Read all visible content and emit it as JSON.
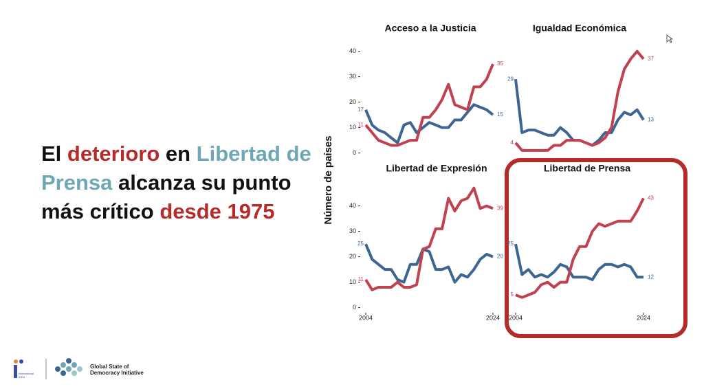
{
  "headline": [
    {
      "text": "El ",
      "color": "#111111"
    },
    {
      "text": "deterioro",
      "color": "#b32c2a"
    },
    {
      "text": " en ",
      "color": "#111111"
    },
    {
      "text": "Libertad de Prensa",
      "color": "#6fa8b5"
    },
    {
      "text": " alcanza su punto más crítico ",
      "color": "#111111"
    },
    {
      "text": "desde 1975",
      "color": "#b32c2a"
    }
  ],
  "y_axis_label": "Número de países",
  "footer": {
    "logo1": "International IDEA",
    "logo2": "Global State of Democracy Initiative"
  },
  "chart_data": [
    {
      "type": "line",
      "title": "Acceso a la Justicia",
      "x": [
        2004,
        2005,
        2006,
        2007,
        2008,
        2009,
        2010,
        2011,
        2012,
        2013,
        2014,
        2015,
        2016,
        2017,
        2018,
        2019,
        2020,
        2021,
        2022,
        2023,
        2024
      ],
      "ylim": [
        -2,
        48
      ],
      "yticks": [
        0,
        10,
        20,
        30,
        40
      ],
      "series": [
        {
          "color": "#3d6591",
          "values": [
            17,
            11,
            9,
            8,
            6,
            4,
            11,
            12,
            8,
            10,
            12,
            11,
            10,
            10,
            13,
            13,
            16,
            19,
            18,
            17,
            15
          ]
        },
        {
          "color": "#c0414f",
          "values": [
            11,
            8,
            5,
            4,
            3,
            3,
            4,
            5,
            5,
            14,
            14,
            17,
            21,
            27,
            19,
            18,
            17,
            26,
            26,
            29,
            35
          ]
        }
      ]
    },
    {
      "type": "line",
      "title": "Igualdad Económica",
      "x": [
        2004,
        2005,
        2006,
        2007,
        2008,
        2009,
        2010,
        2011,
        2012,
        2013,
        2014,
        2015,
        2016,
        2017,
        2018,
        2019,
        2020,
        2021,
        2022,
        2023,
        2024
      ],
      "ylim": [
        -2,
        48
      ],
      "series": [
        {
          "color": "#3d6591",
          "values": [
            29,
            8,
            9,
            9,
            8,
            7,
            7,
            10,
            8,
            5,
            5,
            4,
            3,
            5,
            8,
            8,
            13,
            16,
            15,
            17,
            13
          ]
        },
        {
          "color": "#c0414f",
          "values": [
            4,
            1,
            1,
            1,
            1,
            1,
            3,
            3,
            5,
            5,
            5,
            4,
            3,
            4,
            6,
            10,
            24,
            33,
            37,
            40,
            37
          ]
        }
      ]
    },
    {
      "type": "line",
      "title": "Libertad de Expresión",
      "x": [
        2004,
        2005,
        2006,
        2007,
        2008,
        2009,
        2010,
        2011,
        2012,
        2013,
        2014,
        2015,
        2016,
        2017,
        2018,
        2019,
        2020,
        2021,
        2022,
        2023,
        2024
      ],
      "ylim": [
        -2,
        48
      ],
      "yticks": [
        0,
        10,
        20,
        30,
        40
      ],
      "xticks": [
        2004,
        2024
      ],
      "series": [
        {
          "color": "#3d6591",
          "values": [
            25,
            19,
            17,
            15,
            15,
            11,
            10,
            17,
            17,
            23,
            22,
            15,
            15,
            16,
            10,
            13,
            12,
            15,
            19,
            21,
            20
          ]
        },
        {
          "color": "#c0414f",
          "values": [
            11,
            7,
            8,
            8,
            8,
            10,
            8,
            8,
            9,
            23,
            24,
            31,
            31,
            43,
            38,
            42,
            43,
            47,
            39,
            40,
            39
          ]
        }
      ]
    },
    {
      "type": "line",
      "title": "Libertad de Prensa",
      "x": [
        2004,
        2005,
        2006,
        2007,
        2008,
        2009,
        2010,
        2011,
        2012,
        2013,
        2014,
        2015,
        2016,
        2017,
        2018,
        2019,
        2020,
        2021,
        2022,
        2023,
        2024
      ],
      "ylim": [
        -2,
        48
      ],
      "xticks": [
        2004,
        2024
      ],
      "series": [
        {
          "color": "#3d6591",
          "values": [
            25,
            13,
            15,
            12,
            13,
            12,
            14,
            17,
            16,
            12,
            12,
            12,
            11,
            15,
            17,
            17,
            16,
            17,
            16,
            12,
            12
          ]
        },
        {
          "color": "#c0414f",
          "values": [
            5,
            4,
            5,
            6,
            9,
            10,
            8,
            10,
            10,
            19,
            24,
            24,
            30,
            33,
            32,
            33,
            34,
            34,
            34,
            38,
            43
          ]
        }
      ]
    }
  ]
}
